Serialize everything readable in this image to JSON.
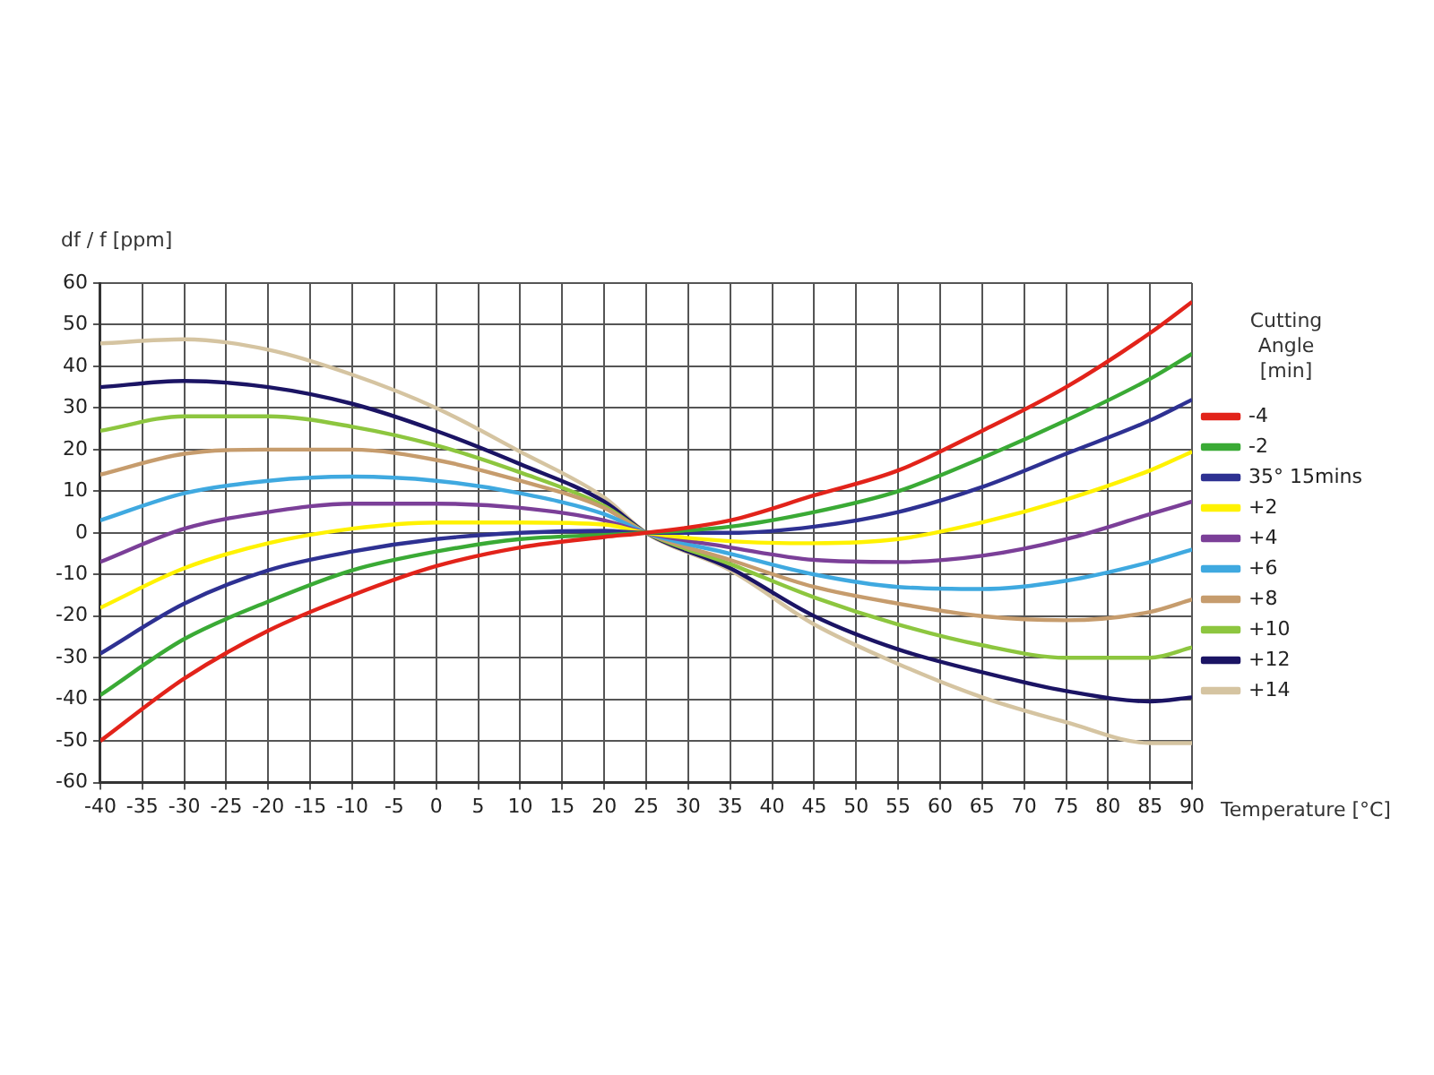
{
  "chart_data": {
    "type": "line",
    "xlabel": "Temperature [°C]",
    "ylabel": "df / f [ppm]",
    "legend_title": "Cutting Angle [min]",
    "x": [
      -40,
      -30,
      -20,
      -10,
      0,
      10,
      20,
      25,
      35,
      45,
      55,
      65,
      75,
      85,
      90
    ],
    "xlim": [
      -40,
      90
    ],
    "xticks": [
      -40,
      -35,
      -30,
      -25,
      -20,
      -15,
      -10,
      -5,
      0,
      5,
      10,
      15,
      20,
      25,
      30,
      35,
      40,
      45,
      50,
      55,
      60,
      65,
      70,
      75,
      80,
      85,
      90
    ],
    "ylim": [
      -60,
      60
    ],
    "yticks": [
      -60,
      -50,
      -40,
      -30,
      -20,
      -10,
      0,
      10,
      20,
      30,
      40,
      50,
      60
    ],
    "grid": true,
    "legend": "right",
    "marker": "none",
    "line_style": "solid",
    "series": [
      {
        "name": "-4",
        "color": "#e2231a",
        "values": [
          -50,
          -35,
          -23.5,
          -15,
          -8,
          -3.5,
          -1,
          0,
          3,
          9,
          15,
          24.5,
          35,
          48,
          55.5
        ]
      },
      {
        "name": "-2",
        "color": "#3aaa35",
        "values": [
          -39,
          -25.5,
          -16.5,
          -9,
          -4.5,
          -1.5,
          -0.5,
          0,
          1.5,
          5,
          10,
          18,
          27,
          37,
          43
        ]
      },
      {
        "name": "35° 15mins",
        "color": "#2e3192",
        "values": [
          -29,
          -17,
          -9,
          -4.5,
          -1.5,
          0,
          0.5,
          0,
          0,
          1.5,
          5,
          11,
          19,
          27,
          32
        ]
      },
      {
        "name": "+2",
        "color": "#fff200",
        "values": [
          -18,
          -8.5,
          -2.5,
          1,
          2.5,
          2.5,
          2,
          0,
          -2,
          -2.5,
          -1.5,
          2.5,
          8,
          15,
          19.5
        ]
      },
      {
        "name": "+4",
        "color": "#7b3f98",
        "values": [
          -7,
          1,
          5,
          7,
          7,
          6,
          3,
          0,
          -3.5,
          -6.5,
          -7,
          -5.5,
          -1.5,
          4.5,
          7.5
        ]
      },
      {
        "name": "+6",
        "color": "#3fa9e0",
        "values": [
          3,
          9.5,
          12.5,
          13.5,
          12.5,
          9.5,
          4.5,
          0,
          -5,
          -10,
          -13,
          -13.5,
          -11.5,
          -7,
          -4
        ]
      },
      {
        "name": "+8",
        "color": "#c69c6d",
        "values": [
          14,
          19,
          20,
          20,
          17.5,
          12.5,
          6,
          0,
          -6.5,
          -13,
          -17,
          -20,
          -21,
          -19,
          -16
        ]
      },
      {
        "name": "+10",
        "color": "#8dc63f",
        "values": [
          24.5,
          28,
          28,
          25.5,
          21,
          14.5,
          6.5,
          0,
          -7.5,
          -15.5,
          -22,
          -27,
          -30,
          -30,
          -27.5
        ]
      },
      {
        "name": "+12",
        "color": "#1b1464",
        "values": [
          35,
          36.5,
          35,
          31,
          24.5,
          16.5,
          7.5,
          0,
          -8.5,
          -20,
          -28,
          -33.5,
          -38,
          -40.5,
          -39.5
        ]
      },
      {
        "name": "+14",
        "color": "#d5c4a1",
        "values": [
          45.5,
          46.5,
          44,
          38,
          30,
          19.5,
          8.5,
          0,
          -9,
          -22,
          -31.5,
          -39.5,
          -45.5,
          -50.5,
          -50.5
        ]
      }
    ]
  }
}
